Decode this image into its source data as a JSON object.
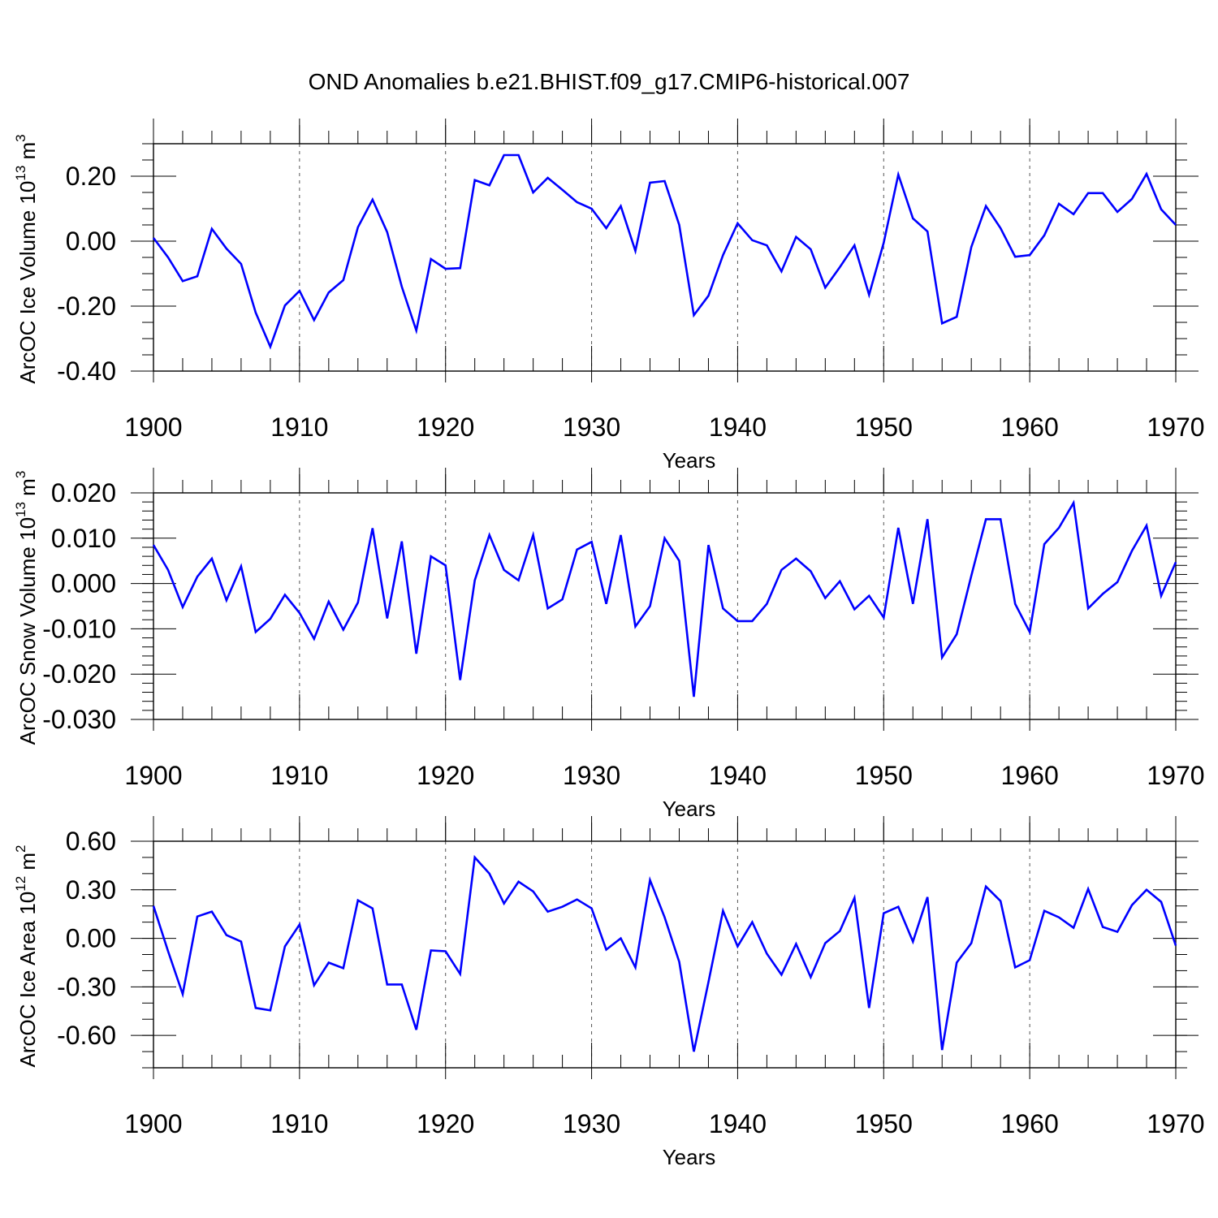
{
  "figure": {
    "title": "OND Anomalies b.e21.BHIST.f09_g17.CMIP6-historical.007"
  },
  "colors": {
    "line": "#0000ff",
    "axis": "#000000",
    "grid": "#555555",
    "background": "#ffffff"
  },
  "chart_data": [
    {
      "type": "line",
      "name": "ice-volume",
      "ylabel_main": "ArcOC Ice Volume 10",
      "ylabel_sup": "13",
      "ylabel_unit": " m",
      "ylabel_unit_sup": "3",
      "xlabel": "Years",
      "xlim": [
        1900,
        1970
      ],
      "ylim": [
        -0.4,
        0.3
      ],
      "xticks": [
        1900,
        1910,
        1920,
        1930,
        1940,
        1950,
        1960,
        1970
      ],
      "xtick_labels": [
        "1900",
        "1910",
        "1920",
        "1930",
        "1940",
        "1950",
        "1960",
        "1970"
      ],
      "yticks": [
        -0.4,
        -0.2,
        0.0,
        0.2
      ],
      "ytick_labels": [
        "-0.40",
        "-0.20",
        "0.00",
        "0.20"
      ],
      "yminor_step": 0.05,
      "xminor_step": 2,
      "grid": "vertical-dashed-at-major-x",
      "x": [
        1900,
        1901,
        1902,
        1903,
        1904,
        1905,
        1906,
        1907,
        1908,
        1909,
        1910,
        1911,
        1912,
        1913,
        1914,
        1915,
        1916,
        1917,
        1918,
        1919,
        1920,
        1921,
        1922,
        1923,
        1924,
        1925,
        1926,
        1927,
        1928,
        1929,
        1930,
        1931,
        1932,
        1933,
        1934,
        1935,
        1936,
        1937,
        1938,
        1939,
        1940,
        1941,
        1942,
        1943,
        1944,
        1945,
        1946,
        1947,
        1948,
        1949,
        1950,
        1951,
        1952,
        1953,
        1954,
        1955,
        1956,
        1957,
        1958,
        1959,
        1960,
        1961,
        1962,
        1963,
        1964,
        1965,
        1966,
        1967,
        1968,
        1969,
        1970
      ],
      "values": [
        0.01,
        -0.05,
        -0.123,
        -0.108,
        0.038,
        -0.023,
        -0.07,
        -0.22,
        -0.325,
        -0.198,
        -0.153,
        -0.243,
        -0.158,
        -0.12,
        0.043,
        0.128,
        0.028,
        -0.14,
        -0.275,
        -0.055,
        -0.085,
        -0.083,
        0.188,
        0.172,
        0.265,
        0.265,
        0.15,
        0.195,
        0.158,
        0.12,
        0.1,
        0.04,
        0.108,
        -0.03,
        0.18,
        0.185,
        0.05,
        -0.228,
        -0.168,
        -0.043,
        0.055,
        0.003,
        -0.013,
        -0.093,
        0.013,
        -0.025,
        -0.143,
        -0.08,
        -0.013,
        -0.165,
        -0.005,
        0.205,
        0.07,
        0.03,
        -0.253,
        -0.233,
        -0.018,
        0.108,
        0.04,
        -0.048,
        -0.043,
        0.018,
        0.115,
        0.083,
        0.148,
        0.148,
        0.09,
        0.13,
        0.207,
        0.098,
        0.05
      ]
    },
    {
      "type": "line",
      "name": "snow-volume",
      "ylabel_main": "ArcOC Snow Volume 10",
      "ylabel_sup": "13",
      "ylabel_unit": " m",
      "ylabel_unit_sup": "3",
      "xlabel": "Years",
      "xlim": [
        1900,
        1970
      ],
      "ylim": [
        -0.03,
        0.02
      ],
      "xticks": [
        1900,
        1910,
        1920,
        1930,
        1940,
        1950,
        1960,
        1970
      ],
      "xtick_labels": [
        "1900",
        "1910",
        "1920",
        "1930",
        "1940",
        "1950",
        "1960",
        "1970"
      ],
      "yticks": [
        -0.03,
        -0.02,
        -0.01,
        0.0,
        0.01,
        0.02
      ],
      "ytick_labels": [
        "-0.030",
        "-0.020",
        "-0.010",
        "0.000",
        "0.010",
        "0.020"
      ],
      "yminor_step": 0.002,
      "xminor_step": 2,
      "grid": "vertical-dashed-at-major-x",
      "x": [
        1900,
        1901,
        1902,
        1903,
        1904,
        1905,
        1906,
        1907,
        1908,
        1909,
        1910,
        1911,
        1912,
        1913,
        1914,
        1915,
        1916,
        1917,
        1918,
        1919,
        1920,
        1921,
        1922,
        1923,
        1924,
        1925,
        1926,
        1927,
        1928,
        1929,
        1930,
        1931,
        1932,
        1933,
        1934,
        1935,
        1936,
        1937,
        1938,
        1939,
        1940,
        1941,
        1942,
        1943,
        1944,
        1945,
        1946,
        1947,
        1948,
        1949,
        1950,
        1951,
        1952,
        1953,
        1954,
        1955,
        1956,
        1957,
        1958,
        1959,
        1960,
        1961,
        1962,
        1963,
        1964,
        1965,
        1966,
        1967,
        1968,
        1969,
        1970
      ],
      "values": [
        0.0085,
        0.003,
        -0.0052,
        0.0015,
        0.0055,
        -0.0037,
        0.0038,
        -0.0107,
        -0.0078,
        -0.0025,
        -0.0065,
        -0.0122,
        -0.004,
        -0.0102,
        -0.0042,
        0.0122,
        -0.0077,
        0.0093,
        -0.0155,
        0.006,
        0.004,
        -0.0213,
        0.0007,
        0.0107,
        0.003,
        0.0007,
        0.0107,
        -0.0055,
        -0.0035,
        0.0075,
        0.0092,
        -0.0045,
        0.0107,
        -0.0095,
        -0.005,
        0.01,
        0.005,
        -0.025,
        0.0085,
        -0.0055,
        -0.0083,
        -0.0083,
        -0.0045,
        0.003,
        0.0055,
        0.0027,
        -0.0032,
        0.0005,
        -0.0057,
        -0.0027,
        -0.0075,
        0.0123,
        -0.0045,
        0.0142,
        -0.0163,
        -0.0112,
        0.0017,
        0.0142,
        0.0142,
        -0.0045,
        -0.0107,
        0.0087,
        0.0123,
        0.0178,
        -0.0055,
        -0.0023,
        0.0003,
        0.0072,
        0.0128,
        -0.0027,
        0.0047
      ]
    },
    {
      "type": "line",
      "name": "ice-area",
      "ylabel_main": "ArcOC Ice Area 10",
      "ylabel_sup": "12",
      "ylabel_unit": " m",
      "ylabel_unit_sup": "2",
      "xlabel": "Years",
      "xlim": [
        1900,
        1970
      ],
      "ylim": [
        -0.8,
        0.6
      ],
      "xticks": [
        1900,
        1910,
        1920,
        1930,
        1940,
        1950,
        1960,
        1970
      ],
      "xtick_labels": [
        "1900",
        "1910",
        "1920",
        "1930",
        "1940",
        "1950",
        "1960",
        "1970"
      ],
      "yticks": [
        -0.6,
        -0.3,
        0.0,
        0.3,
        0.6
      ],
      "ytick_labels": [
        "-0.60",
        "-0.30",
        "0.00",
        "0.30",
        "0.60"
      ],
      "yminor_step": 0.1,
      "xminor_step": 2,
      "grid": "vertical-dashed-at-major-x",
      "x": [
        1900,
        1901,
        1902,
        1903,
        1904,
        1905,
        1906,
        1907,
        1908,
        1909,
        1910,
        1911,
        1912,
        1913,
        1914,
        1915,
        1916,
        1917,
        1918,
        1919,
        1920,
        1921,
        1922,
        1923,
        1924,
        1925,
        1926,
        1927,
        1928,
        1929,
        1930,
        1931,
        1932,
        1933,
        1934,
        1935,
        1936,
        1937,
        1938,
        1939,
        1940,
        1941,
        1942,
        1943,
        1944,
        1945,
        1946,
        1947,
        1948,
        1949,
        1950,
        1951,
        1952,
        1953,
        1954,
        1955,
        1956,
        1957,
        1958,
        1959,
        1960,
        1961,
        1962,
        1963,
        1964,
        1965,
        1966,
        1967,
        1968,
        1969,
        1970
      ],
      "values": [
        0.2,
        -0.08,
        -0.345,
        0.135,
        0.165,
        0.02,
        -0.02,
        -0.43,
        -0.445,
        -0.05,
        0.085,
        -0.29,
        -0.15,
        -0.185,
        0.235,
        0.185,
        -0.285,
        -0.285,
        -0.565,
        -0.075,
        -0.08,
        -0.22,
        0.5,
        0.4,
        0.215,
        0.35,
        0.29,
        0.165,
        0.195,
        0.24,
        0.185,
        -0.07,
        0.0,
        -0.18,
        0.36,
        0.13,
        -0.145,
        -0.7,
        -0.27,
        0.17,
        -0.05,
        0.1,
        -0.095,
        -0.225,
        -0.035,
        -0.24,
        -0.03,
        0.045,
        0.25,
        -0.43,
        0.155,
        0.195,
        -0.02,
        0.255,
        -0.69,
        -0.15,
        -0.03,
        0.32,
        0.23,
        -0.18,
        -0.135,
        0.17,
        0.13,
        0.065,
        0.305,
        0.07,
        0.04,
        0.205,
        0.3,
        0.225,
        -0.045
      ]
    }
  ]
}
